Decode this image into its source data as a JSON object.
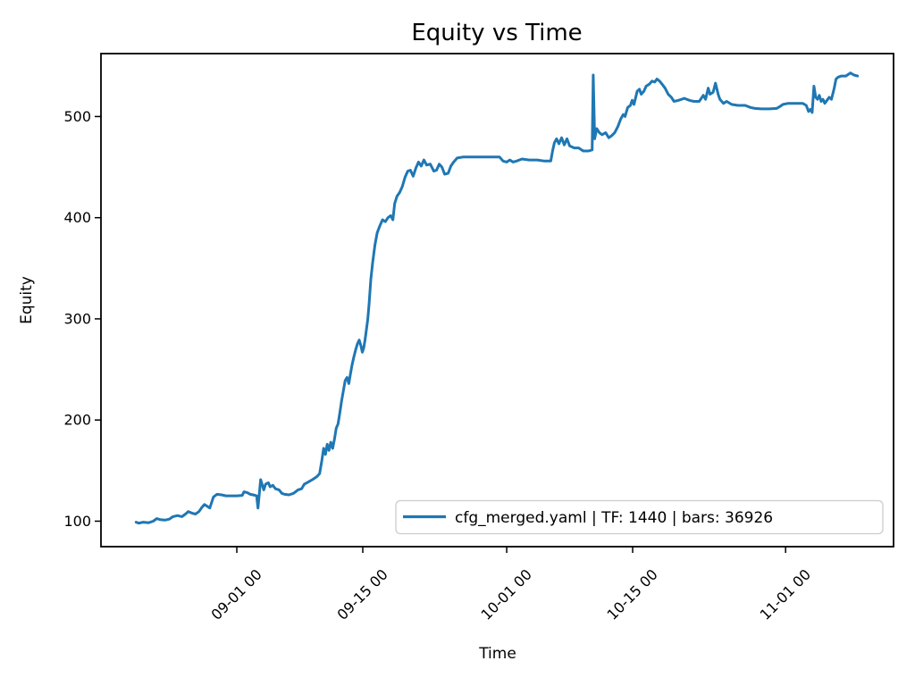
{
  "page": {
    "background": "#ffffff"
  },
  "chart_data": {
    "type": "line",
    "title": "Equity vs Time",
    "xlabel": "Time",
    "ylabel": "Equity",
    "line_color": "#1f77b4",
    "legend": {
      "position": "lower right",
      "border_color": "#cccccc",
      "background": "#ffffff"
    },
    "x_axis": {
      "unit": "days since 09-01 00:00",
      "lim": [
        -15.1,
        73.0
      ],
      "ticks": [
        {
          "d": 0,
          "label": "09-01 00"
        },
        {
          "d": 14,
          "label": "09-15 00"
        },
        {
          "d": 30,
          "label": "10-01 00"
        },
        {
          "d": 44,
          "label": "10-15 00"
        },
        {
          "d": 61,
          "label": "11-01 00"
        }
      ]
    },
    "y_axis": {
      "lim": [
        74.8,
        562.2
      ],
      "ticks": [
        100,
        200,
        300,
        400,
        500
      ]
    },
    "series": [
      {
        "name": "cfg_merged.yaml | TF: 1440 | bars: 36926",
        "points": [
          [
            -11.2,
            99
          ],
          [
            -10.9,
            98
          ],
          [
            -10.4,
            99
          ],
          [
            -9.8,
            98.5
          ],
          [
            -9.3,
            100
          ],
          [
            -8.9,
            102.5
          ],
          [
            -8.5,
            101.5
          ],
          [
            -8.0,
            101
          ],
          [
            -7.5,
            102
          ],
          [
            -7.1,
            104.5
          ],
          [
            -6.6,
            105.5
          ],
          [
            -6.1,
            104.5
          ],
          [
            -5.7,
            107
          ],
          [
            -5.4,
            109.5
          ],
          [
            -5.0,
            108
          ],
          [
            -4.6,
            107
          ],
          [
            -4.2,
            109.5
          ],
          [
            -3.9,
            113.5
          ],
          [
            -3.6,
            116.5
          ],
          [
            -3.0,
            113
          ],
          [
            -2.6,
            124
          ],
          [
            -2.2,
            126.5
          ],
          [
            -1.7,
            126
          ],
          [
            -1.2,
            125
          ],
          [
            -0.6,
            125
          ],
          [
            0.0,
            125
          ],
          [
            0.6,
            125.5
          ],
          [
            0.8,
            129
          ],
          [
            1.2,
            128
          ],
          [
            1.5,
            126.5
          ],
          [
            1.8,
            126
          ],
          [
            2.2,
            125
          ],
          [
            2.35,
            113
          ],
          [
            2.65,
            141
          ],
          [
            3.0,
            131
          ],
          [
            3.2,
            136.5
          ],
          [
            3.5,
            138
          ],
          [
            3.7,
            134
          ],
          [
            4.0,
            135.5
          ],
          [
            4.3,
            132
          ],
          [
            4.7,
            131
          ],
          [
            5.0,
            127.5
          ],
          [
            5.3,
            126.5
          ],
          [
            5.8,
            126
          ],
          [
            6.3,
            127.5
          ],
          [
            6.8,
            131
          ],
          [
            7.2,
            132
          ],
          [
            7.5,
            136.5
          ],
          [
            7.8,
            138
          ],
          [
            8.1,
            139.5
          ],
          [
            8.4,
            141
          ],
          [
            8.9,
            144
          ],
          [
            9.2,
            147
          ],
          [
            9.45,
            160
          ],
          [
            9.65,
            172
          ],
          [
            9.85,
            166
          ],
          [
            10.05,
            176
          ],
          [
            10.25,
            170
          ],
          [
            10.45,
            178
          ],
          [
            10.65,
            172
          ],
          [
            10.85,
            181
          ],
          [
            11.05,
            192
          ],
          [
            11.25,
            196
          ],
          [
            11.45,
            207
          ],
          [
            11.65,
            219
          ],
          [
            11.85,
            229
          ],
          [
            12.05,
            239
          ],
          [
            12.25,
            242
          ],
          [
            12.45,
            236
          ],
          [
            12.6,
            244
          ],
          [
            12.8,
            254
          ],
          [
            13.0,
            262
          ],
          [
            13.2,
            269
          ],
          [
            13.4,
            275
          ],
          [
            13.6,
            279
          ],
          [
            13.8,
            273
          ],
          [
            13.95,
            267
          ],
          [
            14.1,
            271
          ],
          [
            14.25,
            279
          ],
          [
            14.4,
            289
          ],
          [
            14.55,
            299
          ],
          [
            14.7,
            314
          ],
          [
            14.9,
            339
          ],
          [
            15.1,
            356
          ],
          [
            15.35,
            373
          ],
          [
            15.6,
            385
          ],
          [
            15.9,
            392
          ],
          [
            16.2,
            398
          ],
          [
            16.5,
            396
          ],
          [
            16.8,
            400
          ],
          [
            17.1,
            402
          ],
          [
            17.35,
            398
          ],
          [
            17.55,
            414
          ],
          [
            17.8,
            421
          ],
          [
            18.1,
            425
          ],
          [
            18.4,
            431
          ],
          [
            18.7,
            440
          ],
          [
            19.0,
            446
          ],
          [
            19.3,
            447
          ],
          [
            19.6,
            441
          ],
          [
            19.9,
            449
          ],
          [
            20.2,
            455
          ],
          [
            20.5,
            451
          ],
          [
            20.8,
            457
          ],
          [
            21.1,
            452
          ],
          [
            21.5,
            453
          ],
          [
            21.9,
            446
          ],
          [
            22.2,
            447
          ],
          [
            22.5,
            453
          ],
          [
            22.8,
            450
          ],
          [
            23.1,
            443
          ],
          [
            23.5,
            444
          ],
          [
            23.8,
            451
          ],
          [
            24.1,
            455
          ],
          [
            24.5,
            459
          ],
          [
            25.2,
            460
          ],
          [
            26.2,
            460
          ],
          [
            27.2,
            460
          ],
          [
            28.2,
            460
          ],
          [
            29.2,
            460
          ],
          [
            29.6,
            456
          ],
          [
            30.0,
            455
          ],
          [
            30.35,
            457
          ],
          [
            30.7,
            455
          ],
          [
            31.1,
            456
          ],
          [
            31.7,
            458
          ],
          [
            32.5,
            457
          ],
          [
            33.4,
            457
          ],
          [
            34.2,
            456
          ],
          [
            34.9,
            456
          ],
          [
            35.1,
            466
          ],
          [
            35.3,
            474
          ],
          [
            35.55,
            478
          ],
          [
            35.8,
            473
          ],
          [
            36.1,
            479
          ],
          [
            36.4,
            472
          ],
          [
            36.7,
            478
          ],
          [
            37.0,
            471
          ],
          [
            37.5,
            469
          ],
          [
            38.0,
            469
          ],
          [
            38.5,
            466
          ],
          [
            39.1,
            466
          ],
          [
            39.5,
            467
          ],
          [
            39.62,
            541
          ],
          [
            39.78,
            478
          ],
          [
            40.0,
            488
          ],
          [
            40.3,
            484
          ],
          [
            40.6,
            482
          ],
          [
            41.0,
            484
          ],
          [
            41.35,
            479
          ],
          [
            41.65,
            481
          ],
          [
            42.0,
            484
          ],
          [
            42.35,
            490
          ],
          [
            42.7,
            498
          ],
          [
            42.95,
            502
          ],
          [
            43.15,
            500
          ],
          [
            43.45,
            509
          ],
          [
            43.75,
            511
          ],
          [
            43.95,
            516
          ],
          [
            44.15,
            512
          ],
          [
            44.5,
            525
          ],
          [
            44.75,
            527
          ],
          [
            44.95,
            522
          ],
          [
            45.25,
            525
          ],
          [
            45.5,
            530
          ],
          [
            45.85,
            532
          ],
          [
            46.15,
            535
          ],
          [
            46.45,
            534
          ],
          [
            46.7,
            537
          ],
          [
            47.0,
            535
          ],
          [
            47.35,
            531
          ],
          [
            47.6,
            528
          ],
          [
            47.95,
            522
          ],
          [
            48.3,
            519
          ],
          [
            48.6,
            515
          ],
          [
            49.1,
            516
          ],
          [
            49.75,
            518
          ],
          [
            50.3,
            516
          ],
          [
            50.8,
            515
          ],
          [
            51.4,
            515
          ],
          [
            51.85,
            521
          ],
          [
            52.1,
            517
          ],
          [
            52.4,
            528
          ],
          [
            52.6,
            522
          ],
          [
            52.95,
            524
          ],
          [
            53.2,
            533
          ],
          [
            53.5,
            522
          ],
          [
            53.7,
            517
          ],
          [
            54.1,
            513
          ],
          [
            54.45,
            515
          ],
          [
            55.0,
            512
          ],
          [
            55.7,
            511
          ],
          [
            56.5,
            511
          ],
          [
            57.1,
            509
          ],
          [
            57.6,
            508
          ],
          [
            58.3,
            507.5
          ],
          [
            59.2,
            507.5
          ],
          [
            60.0,
            508
          ],
          [
            60.4,
            510
          ],
          [
            60.7,
            512
          ],
          [
            61.3,
            513
          ],
          [
            62.1,
            513
          ],
          [
            62.9,
            513
          ],
          [
            63.3,
            511
          ],
          [
            63.55,
            505
          ],
          [
            63.75,
            507
          ],
          [
            63.95,
            504
          ],
          [
            64.15,
            530
          ],
          [
            64.35,
            519
          ],
          [
            64.55,
            517
          ],
          [
            64.75,
            521
          ],
          [
            64.95,
            515
          ],
          [
            65.15,
            517
          ],
          [
            65.35,
            513
          ],
          [
            65.6,
            516
          ],
          [
            65.85,
            519
          ],
          [
            66.1,
            517
          ],
          [
            66.4,
            528
          ],
          [
            66.6,
            537
          ],
          [
            66.85,
            539
          ],
          [
            67.2,
            540
          ],
          [
            67.7,
            540
          ],
          [
            68.2,
            543
          ],
          [
            68.6,
            541
          ],
          [
            69.0,
            540
          ]
        ]
      }
    ]
  }
}
